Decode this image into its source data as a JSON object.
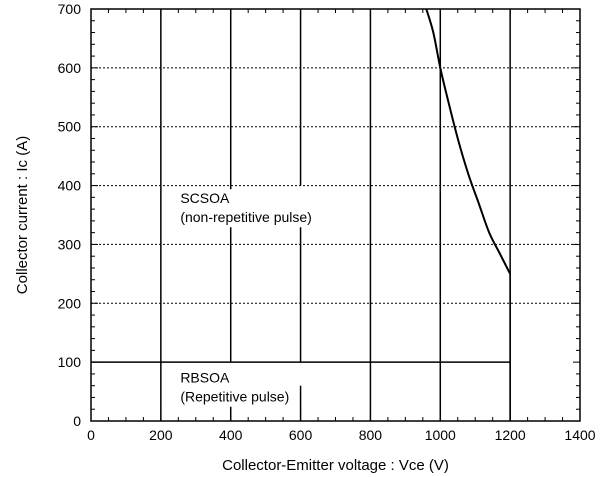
{
  "chart_data": {
    "type": "line",
    "title": "",
    "xlabel": "Collector-Emitter voltage : Vce (V)",
    "ylabel": "Collector current : Ic (A)",
    "xlim": [
      0,
      1400
    ],
    "ylim": [
      0,
      700
    ],
    "x_ticks": [
      0,
      200,
      400,
      600,
      800,
      1000,
      1200,
      1400
    ],
    "y_ticks": [
      0,
      100,
      200,
      300,
      400,
      500,
      600,
      700
    ],
    "x_tick_labels": [
      "0",
      "200",
      "400",
      "600",
      "800",
      "1000",
      "1200",
      "1400"
    ],
    "y_tick_labels": [
      "0",
      "100",
      "200",
      "300",
      "400",
      "500",
      "600",
      "700"
    ],
    "vertical_gridlines": [
      200,
      400,
      600,
      800,
      1000,
      1200
    ],
    "horizontal_gridlines": [
      200,
      300,
      400,
      500,
      600
    ],
    "vertical_gridline_extents": [
      {
        "x": 200,
        "y_from": 0,
        "y_to": 700
      },
      {
        "x": 400,
        "y_from": 0,
        "y_to": 60
      },
      {
        "x": 400,
        "y_from": 100,
        "y_to": 700
      },
      {
        "x": 600,
        "y_from": 0,
        "y_to": 60
      },
      {
        "x": 600,
        "y_from": 100,
        "y_to": 340
      },
      {
        "x": 600,
        "y_from": 400,
        "y_to": 700
      },
      {
        "x": 800,
        "y_from": 0,
        "y_to": 700
      },
      {
        "x": 1000,
        "y_from": 0,
        "y_to": 700
      },
      {
        "x": 1200,
        "y_from": 0,
        "y_to": 700
      }
    ],
    "series": [
      {
        "values": [
          {
            "x": 960,
            "y": 700
          },
          {
            "x": 980,
            "y": 660
          },
          {
            "x": 1000,
            "y": 600
          },
          {
            "x": 1020,
            "y": 550
          },
          {
            "x": 1050,
            "y": 480
          },
          {
            "x": 1080,
            "y": 420
          },
          {
            "x": 1110,
            "y": 370
          },
          {
            "x": 1140,
            "y": 320
          },
          {
            "x": 1170,
            "y": 285
          },
          {
            "x": 1200,
            "y": 250
          }
        ]
      }
    ],
    "boundaries": [
      {
        "from": {
          "x": 0,
          "y": 100
        },
        "to": {
          "x": 1200,
          "y": 100
        }
      },
      {
        "from": {
          "x": 1200,
          "y": 250
        },
        "to": {
          "x": 1200,
          "y": 0
        }
      }
    ],
    "annotations": [
      {
        "lines": [
          "SCSOA",
          "(non-repetitive pulse)"
        ],
        "x": 250,
        "y": 370
      },
      {
        "lines": [
          "RBSOA",
          "(Repetitive pulse)"
        ],
        "x": 250,
        "y": 65
      }
    ],
    "grid": true,
    "legend": "none"
  }
}
